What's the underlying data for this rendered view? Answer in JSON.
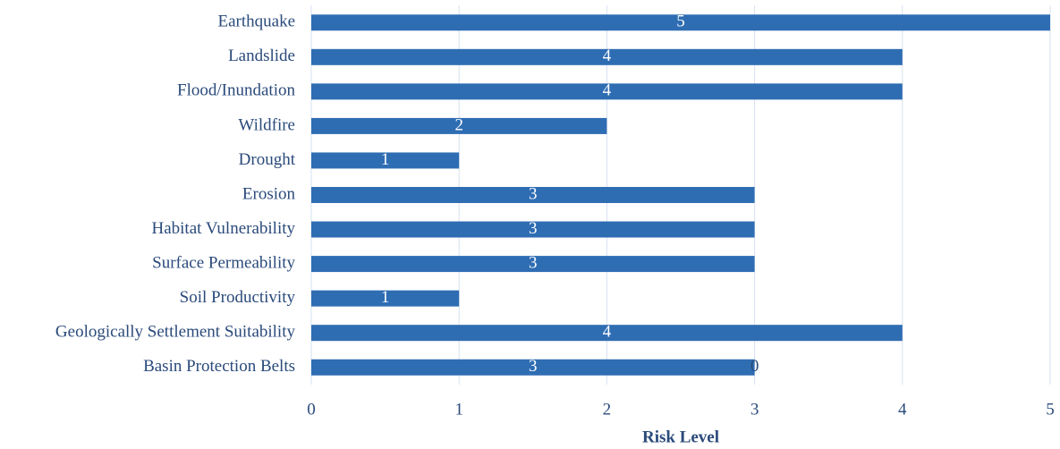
{
  "chart_data": {
    "type": "hbar",
    "xlabel": "Risk Level",
    "categories": [
      "Earthquake",
      "Landslide",
      "Flood/Inundation",
      "Wildfire",
      "Drought",
      "Erosion",
      "Habitat Vulnerability",
      "Surface Permeability",
      "Soil Productivity",
      "Geologically Settlement Suitability",
      "Basin Protection Belts"
    ],
    "series": [
      {
        "color": "#2f6db3",
        "values": [
          5,
          4,
          4,
          2,
          1,
          3,
          3,
          3,
          1,
          4,
          3
        ]
      },
      {
        "color": "#2f6db3",
        "values": [
          null,
          null,
          null,
          null,
          null,
          null,
          null,
          null,
          null,
          null,
          0
        ]
      }
    ],
    "xlim": [
      0,
      5
    ],
    "xticks": [
      0,
      1,
      2,
      3,
      4,
      5
    ],
    "grid": true
  }
}
